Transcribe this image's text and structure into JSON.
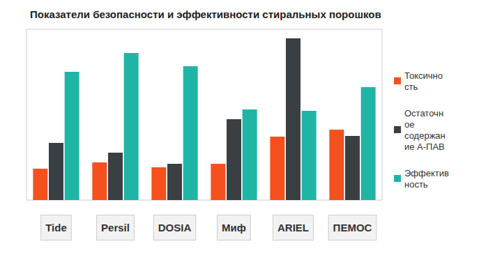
{
  "chart_data": {
    "type": "bar",
    "title": "Показатели безопасности и эффективности стиральных порошков",
    "categories": [
      "Tide",
      "Persil",
      "DOSIA",
      "Миф",
      "ARIEL",
      "ПЕМОС"
    ],
    "series": [
      {
        "name": "Токсичность",
        "color": "#f4511e",
        "values": [
          18.4,
          22.0,
          19.2,
          21.2,
          37.1,
          41.2
        ]
      },
      {
        "name": "Остаточное содержание А-ПАВ",
        "color": "#3a3f44",
        "values": [
          33.5,
          27.8,
          21.2,
          47.3,
          94.7,
          37.6
        ]
      },
      {
        "name": "Эффективность",
        "color": "#1fb5a5",
        "values": [
          75.1,
          86.1,
          78.4,
          53.1,
          52.2,
          66.1
        ]
      }
    ],
    "ylim": [
      0,
      100
    ],
    "grid": false,
    "legend": "right",
    "tick_labels": "x"
  }
}
